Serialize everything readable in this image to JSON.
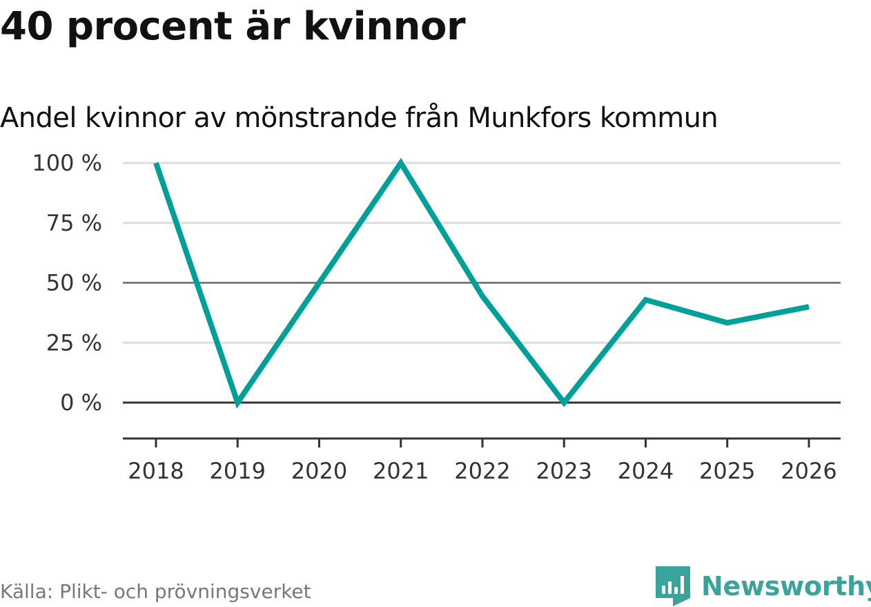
{
  "title": "40 procent är kvinnor",
  "subtitle": "Andel kvinnor av mönstrande från Munkfors kommun",
  "source": "Källa: Plikt- och prövningsverket",
  "brand": {
    "name": "Newsworthy",
    "logo_icon": "bar-chart-shield-icon",
    "color": "#3aa39b"
  },
  "colors": {
    "line": "#00a09a",
    "grid": "#dddddd",
    "grid_emphasis": "#666666",
    "axis": "#333333"
  },
  "chart_data": {
    "type": "line",
    "title": "40 procent är kvinnor",
    "subtitle": "Andel kvinnor av mönstrande från Munkfors kommun",
    "xlabel": "",
    "ylabel": "",
    "categories": [
      "2018",
      "2019",
      "2020",
      "2021",
      "2022",
      "2023",
      "2024",
      "2025",
      "2026"
    ],
    "series": [
      {
        "name": "Andel kvinnor",
        "values": [
          100,
          0,
          50,
          100,
          44.4,
          0,
          42.9,
          33.3,
          40
        ]
      }
    ],
    "ylim": [
      -15,
      100
    ],
    "yticks": [
      0,
      25,
      50,
      75,
      100
    ],
    "ytick_labels": [
      "0 %",
      "25 %",
      "50 %",
      "75 %",
      "100 %"
    ],
    "grid": true,
    "legend": "none"
  }
}
